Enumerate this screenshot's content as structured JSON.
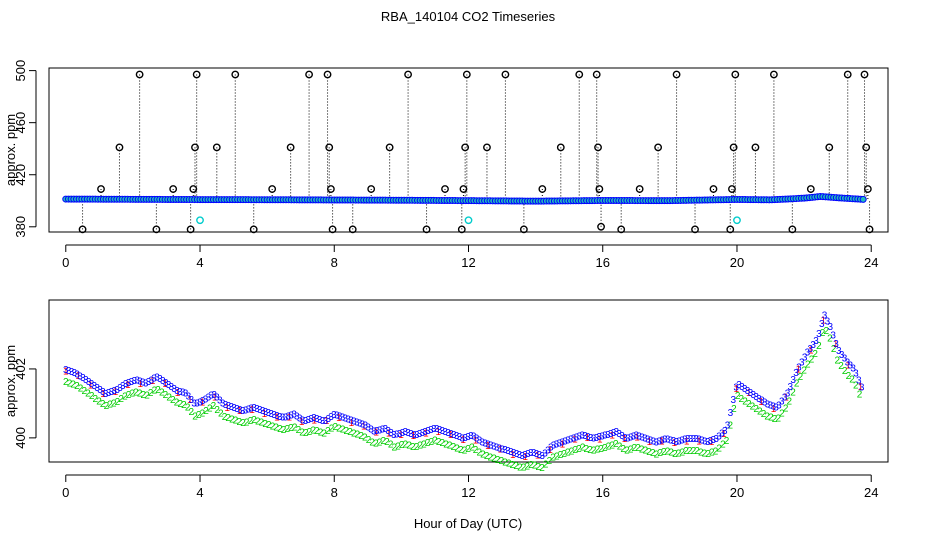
{
  "title": "RBA_140104  CO2 Timeseries",
  "xlabel": "Hour of Day (UTC)",
  "chart_data": [
    {
      "type": "scatter",
      "panel": "top",
      "ylabel": "approx. ppm",
      "xlim": [
        -0.5,
        24.5
      ],
      "ylim": [
        376,
        502
      ],
      "xticks": [
        0,
        4,
        8,
        12,
        16,
        20,
        24
      ],
      "yticks": [
        380,
        420,
        460,
        500
      ],
      "xtick_labels": [
        "0",
        "4",
        "8",
        "12",
        "16",
        "20",
        "24"
      ],
      "ytick_labels": [
        "380",
        "420",
        "460",
        "500"
      ],
      "colors": {
        "baseline": "#0000ff",
        "baseline_fill": "#22bbbb",
        "flagged": "#000000",
        "cal": "#00cccc",
        "drop": "#000000"
      },
      "flagged_points": [
        {
          "x": 0.5,
          "y": 378
        },
        {
          "x": 1.05,
          "y": 409
        },
        {
          "x": 1.6,
          "y": 441
        },
        {
          "x": 2.2,
          "y": 497
        },
        {
          "x": 2.7,
          "y": 378
        },
        {
          "x": 3.2,
          "y": 409
        },
        {
          "x": 3.72,
          "y": 378
        },
        {
          "x": 3.8,
          "y": 409
        },
        {
          "x": 3.85,
          "y": 441
        },
        {
          "x": 3.9,
          "y": 497
        },
        {
          "x": 4.5,
          "y": 441
        },
        {
          "x": 5.05,
          "y": 497
        },
        {
          "x": 5.6,
          "y": 378
        },
        {
          "x": 6.15,
          "y": 409
        },
        {
          "x": 6.7,
          "y": 441
        },
        {
          "x": 7.25,
          "y": 497
        },
        {
          "x": 7.8,
          "y": 497
        },
        {
          "x": 7.85,
          "y": 441
        },
        {
          "x": 7.9,
          "y": 409
        },
        {
          "x": 7.95,
          "y": 378
        },
        {
          "x": 8.55,
          "y": 378
        },
        {
          "x": 9.1,
          "y": 409
        },
        {
          "x": 9.65,
          "y": 441
        },
        {
          "x": 10.2,
          "y": 497
        },
        {
          "x": 10.75,
          "y": 378
        },
        {
          "x": 11.3,
          "y": 409
        },
        {
          "x": 11.8,
          "y": 378
        },
        {
          "x": 11.85,
          "y": 409
        },
        {
          "x": 11.9,
          "y": 441
        },
        {
          "x": 11.95,
          "y": 497
        },
        {
          "x": 12.55,
          "y": 441
        },
        {
          "x": 13.1,
          "y": 497
        },
        {
          "x": 13.65,
          "y": 378
        },
        {
          "x": 14.2,
          "y": 409
        },
        {
          "x": 14.75,
          "y": 441
        },
        {
          "x": 15.3,
          "y": 497
        },
        {
          "x": 15.82,
          "y": 497
        },
        {
          "x": 15.86,
          "y": 441
        },
        {
          "x": 15.9,
          "y": 409
        },
        {
          "x": 15.95,
          "y": 380
        },
        {
          "x": 16.55,
          "y": 378
        },
        {
          "x": 17.1,
          "y": 409
        },
        {
          "x": 17.65,
          "y": 441
        },
        {
          "x": 18.2,
          "y": 497
        },
        {
          "x": 18.75,
          "y": 378
        },
        {
          "x": 19.3,
          "y": 409
        },
        {
          "x": 19.8,
          "y": 378
        },
        {
          "x": 19.85,
          "y": 409
        },
        {
          "x": 19.9,
          "y": 441
        },
        {
          "x": 19.95,
          "y": 497
        },
        {
          "x": 20.55,
          "y": 441
        },
        {
          "x": 21.1,
          "y": 497
        },
        {
          "x": 21.65,
          "y": 378
        },
        {
          "x": 22.2,
          "y": 409
        },
        {
          "x": 22.75,
          "y": 441
        },
        {
          "x": 23.3,
          "y": 497
        },
        {
          "x": 23.8,
          "y": 497
        },
        {
          "x": 23.85,
          "y": 441
        },
        {
          "x": 23.9,
          "y": 409
        },
        {
          "x": 23.95,
          "y": 378
        }
      ],
      "cal_points": [
        {
          "x": 4.0,
          "y": 385
        },
        {
          "x": 12.0,
          "y": 385
        },
        {
          "x": 20.0,
          "y": 385
        }
      ],
      "baseline": [
        {
          "x": 0.0,
          "y": 401.3
        },
        {
          "x": 2.0,
          "y": 401.1
        },
        {
          "x": 4.0,
          "y": 400.9
        },
        {
          "x": 6.0,
          "y": 400.8
        },
        {
          "x": 8.0,
          "y": 400.6
        },
        {
          "x": 10.0,
          "y": 400.4
        },
        {
          "x": 12.0,
          "y": 400.1
        },
        {
          "x": 14.0,
          "y": 399.7
        },
        {
          "x": 16.0,
          "y": 400.2
        },
        {
          "x": 18.0,
          "y": 400.1
        },
        {
          "x": 20.0,
          "y": 401.0
        },
        {
          "x": 21.0,
          "y": 400.7
        },
        {
          "x": 22.0,
          "y": 402.0
        },
        {
          "x": 22.5,
          "y": 403.3
        },
        {
          "x": 23.0,
          "y": 402.3
        },
        {
          "x": 23.8,
          "y": 401.0
        }
      ]
    },
    {
      "type": "line",
      "panel": "bottom",
      "ylabel": "approx. ppm",
      "xlim": [
        -0.5,
        24.5
      ],
      "ylim": [
        399.3,
        404.0
      ],
      "xticks": [
        0,
        4,
        8,
        12,
        16,
        20,
        24
      ],
      "yticks": [
        400,
        402
      ],
      "xtick_labels": [
        "0",
        "4",
        "8",
        "12",
        "16",
        "20",
        "24"
      ],
      "ytick_labels": [
        "400",
        "402"
      ],
      "marker_labels": {
        "s1": "1",
        "s2": "2",
        "s3": "3"
      },
      "colors": {
        "s1": "#ff0000",
        "s2": "#00cc00",
        "s3": "#0000ff"
      },
      "series3_x": [
        0.0,
        0.3,
        0.6,
        0.9,
        1.2,
        1.5,
        1.8,
        2.1,
        2.4,
        2.7,
        3.0,
        3.3,
        3.6,
        3.85,
        4.1,
        4.4,
        4.7,
        5.0,
        5.3,
        5.6,
        5.9,
        6.2,
        6.5,
        6.8,
        7.1,
        7.4,
        7.7,
        8.0,
        8.3,
        8.6,
        8.9,
        9.2,
        9.5,
        9.8,
        10.1,
        10.4,
        10.7,
        11.0,
        11.3,
        11.6,
        11.85,
        12.1,
        12.4,
        12.7,
        13.0,
        13.3,
        13.6,
        13.9,
        14.2,
        14.5,
        14.8,
        15.1,
        15.4,
        15.7,
        16.1,
        16.4,
        16.7,
        17.0,
        17.3,
        17.6,
        17.9,
        18.2,
        18.5,
        18.8,
        19.1,
        19.4,
        19.7,
        20.0,
        20.3,
        20.6,
        20.9,
        21.2,
        21.5,
        21.8,
        22.1,
        22.4,
        22.6,
        22.8,
        23.0,
        23.3,
        23.5,
        23.75
      ],
      "series3_y": [
        402.0,
        401.9,
        401.7,
        401.5,
        401.3,
        401.4,
        401.6,
        401.7,
        401.6,
        401.8,
        401.6,
        401.4,
        401.3,
        401.0,
        401.1,
        401.3,
        401.0,
        400.9,
        400.8,
        400.9,
        400.8,
        400.7,
        400.6,
        400.7,
        400.5,
        400.6,
        400.5,
        400.7,
        400.6,
        400.5,
        400.4,
        400.2,
        400.3,
        400.1,
        400.2,
        400.1,
        400.2,
        400.3,
        400.2,
        400.1,
        400.0,
        400.1,
        399.9,
        399.8,
        399.7,
        399.6,
        399.5,
        399.6,
        399.5,
        399.8,
        399.9,
        400.0,
        400.1,
        400.0,
        400.1,
        400.2,
        400.0,
        400.1,
        400.0,
        399.9,
        400.0,
        399.9,
        400.0,
        400.0,
        399.9,
        400.0,
        400.3,
        401.6,
        401.4,
        401.2,
        401.0,
        400.9,
        401.3,
        402.0,
        402.5,
        402.9,
        403.6,
        403.2,
        402.6,
        402.2,
        402.0,
        401.4
      ],
      "series": [
        {
          "name": "1",
          "offset": -0.05
        },
        {
          "name": "2",
          "offset": -0.35
        },
        {
          "name": "3",
          "offset": 0.0
        }
      ]
    }
  ]
}
